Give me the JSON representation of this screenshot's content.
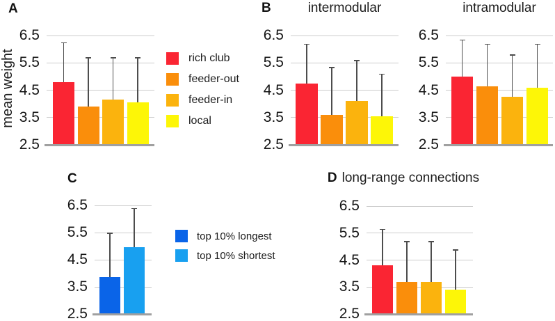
{
  "figure": {
    "y_axis_label": "mean weight",
    "panels": {
      "a": {
        "letter": "A"
      },
      "b": {
        "letter": "B"
      },
      "c": {
        "letter": "C"
      },
      "d": {
        "letter": "D"
      }
    },
    "colors": {
      "rich_club": "#FA2533",
      "feeder_out": "#FA8E0B",
      "feeder_in": "#FBB30D",
      "local": "#FDF607",
      "top10_longest": "#0A64E8",
      "top10_shortest": "#18A0F0",
      "gridline": "#CCCCCC",
      "baseline": "#A0A0A0",
      "error_bar": "#4D4D4D"
    },
    "legend_abd": [
      {
        "label": "rich club",
        "color": "#FA2533"
      },
      {
        "label": "feeder-out",
        "color": "#FA8E0B"
      },
      {
        "label": "feeder-in",
        "color": "#FBB30D"
      },
      {
        "label": "local",
        "color": "#FDF607"
      }
    ],
    "legend_c": [
      {
        "label": "top 10% longest",
        "color": "#0A64E8"
      },
      {
        "label": "top 10% shortest",
        "color": "#18A0F0"
      }
    ]
  },
  "chart_data": [
    {
      "id": "A",
      "type": "bar",
      "title": "",
      "ylabel": "mean weight",
      "categories": [
        "rich club",
        "feeder-out",
        "feeder-in",
        "local"
      ],
      "values": [
        4.8,
        3.9,
        4.15,
        4.05
      ],
      "error_top": [
        6.25,
        5.7,
        5.7,
        5.7
      ],
      "colors": [
        "#FA2533",
        "#FA8E0B",
        "#FBB30D",
        "#FDF607"
      ],
      "ylim": [
        2.5,
        6.5
      ],
      "yticks": [
        2.5,
        3.5,
        4.5,
        5.5,
        6.5
      ],
      "grid": true,
      "legend_position": "right"
    },
    {
      "id": "B-intermodular",
      "type": "bar",
      "title": "intermodular",
      "ylabel": "",
      "categories": [
        "rich club",
        "feeder-out",
        "feeder-in",
        "local"
      ],
      "values": [
        4.75,
        3.6,
        4.1,
        3.55
      ],
      "error_top": [
        6.2,
        5.35,
        5.6,
        5.1
      ],
      "colors": [
        "#FA2533",
        "#FA8E0B",
        "#FBB30D",
        "#FDF607"
      ],
      "ylim": [
        2.5,
        6.5
      ],
      "yticks": [
        2.5,
        3.5,
        4.5,
        5.5,
        6.5
      ],
      "grid": true,
      "legend_position": "none"
    },
    {
      "id": "B-intramodular",
      "type": "bar",
      "title": "intramodular",
      "ylabel": "",
      "categories": [
        "rich club",
        "feeder-out",
        "feeder-in",
        "local"
      ],
      "values": [
        5.0,
        4.65,
        4.25,
        4.6
      ],
      "error_top": [
        6.35,
        6.2,
        5.8,
        6.2
      ],
      "colors": [
        "#FA2533",
        "#FA8E0B",
        "#FBB30D",
        "#FDF607"
      ],
      "ylim": [
        2.5,
        6.5
      ],
      "yticks": [
        2.5,
        3.5,
        4.5,
        5.5,
        6.5
      ],
      "grid": true,
      "legend_position": "none"
    },
    {
      "id": "C",
      "type": "bar",
      "title": "",
      "ylabel": "",
      "categories": [
        "top 10% longest",
        "top 10% shortest"
      ],
      "values": [
        3.85,
        4.95
      ],
      "error_top": [
        5.5,
        6.4
      ],
      "colors": [
        "#0A64E8",
        "#18A0F0"
      ],
      "ylim": [
        2.5,
        6.5
      ],
      "yticks": [
        2.5,
        3.5,
        4.5,
        5.5,
        6.5
      ],
      "grid": true,
      "legend_position": "right"
    },
    {
      "id": "D",
      "type": "bar",
      "title": "long-range connections",
      "ylabel": "",
      "categories": [
        "rich club",
        "feeder-out",
        "feeder-in",
        "local"
      ],
      "values": [
        4.3,
        3.7,
        3.7,
        3.4
      ],
      "error_top": [
        5.65,
        5.2,
        5.2,
        4.9
      ],
      "colors": [
        "#FA2533",
        "#FA8E0B",
        "#FBB30D",
        "#FDF607"
      ],
      "ylim": [
        2.5,
        6.5
      ],
      "yticks": [
        2.5,
        3.5,
        4.5,
        5.5,
        6.5
      ],
      "grid": true,
      "legend_position": "none"
    }
  ]
}
